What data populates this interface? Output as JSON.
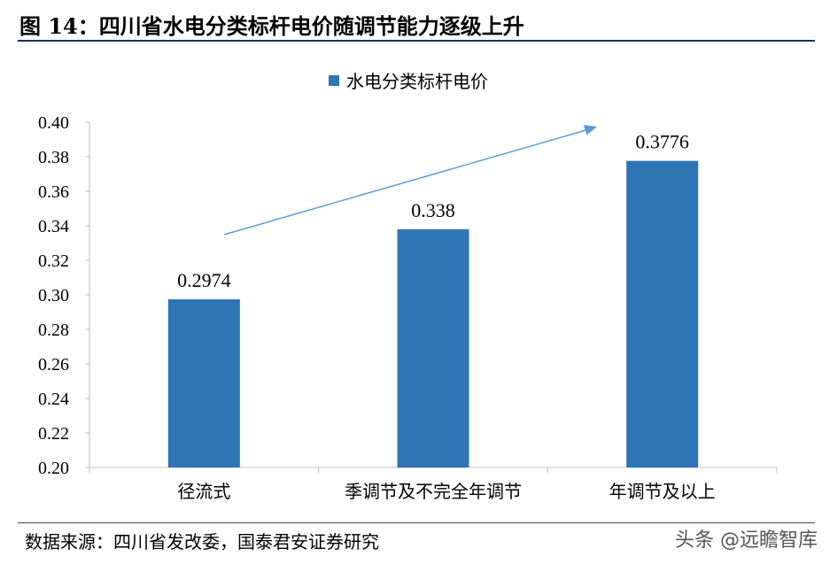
{
  "header": {
    "title": "图 14：四川省水电分类标杆电价随调节能力逐级上升"
  },
  "footer": {
    "source": "数据来源：四川省发改委，国泰君安证券研究",
    "watermark": "头条 @远瞻智库"
  },
  "chart_data": {
    "type": "bar",
    "title": "",
    "xlabel": "",
    "ylabel": "",
    "categories": [
      "径流式",
      "季调节及不完全年调节",
      "年调节及以上"
    ],
    "series": [
      {
        "name": "水电分类标杆电价",
        "values": [
          0.2974,
          0.338,
          0.3776
        ],
        "labels": [
          "0.2974",
          "0.338",
          "0.3776"
        ]
      }
    ],
    "ylim": [
      0.2,
      0.4
    ],
    "yticks": [
      "0.20",
      "0.22",
      "0.24",
      "0.26",
      "0.28",
      "0.30",
      "0.32",
      "0.34",
      "0.36",
      "0.38",
      "0.40"
    ],
    "grid": false,
    "legend": "top-center",
    "colors": {
      "bar": "#2e75b6",
      "arrow": "#5b9bd5",
      "axis": "#bfbfbf"
    },
    "annotation": {
      "type": "arrow",
      "meaning": "rising trend"
    }
  }
}
